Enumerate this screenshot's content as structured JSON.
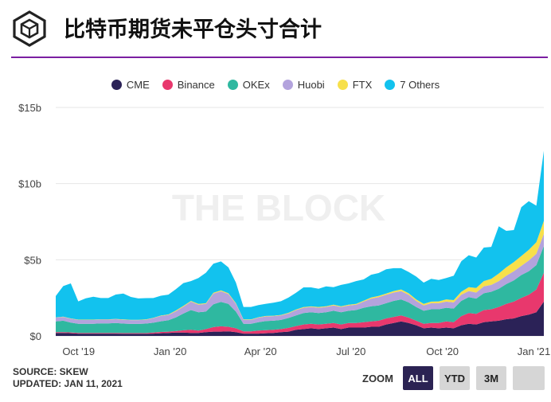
{
  "header": {
    "title": "比特币期货未平仓头寸合计"
  },
  "legend": [
    {
      "name": "CME",
      "color": "#2b2257"
    },
    {
      "name": "Binance",
      "color": "#e8386d"
    },
    {
      "name": "OKEx",
      "color": "#2fb8a0"
    },
    {
      "name": "Huobi",
      "color": "#b3a3dd"
    },
    {
      "name": "FTX",
      "color": "#f7e04b"
    },
    {
      "name": "7 Others",
      "color": "#12c2ee"
    }
  ],
  "watermark": "THE BLOCK",
  "footer": {
    "source": "SOURCE: SKEW",
    "updated": "UPDATED: JAN 11, 2021"
  },
  "zoom": {
    "label": "ZOOM",
    "buttons": [
      "ALL",
      "YTD",
      "3M",
      ""
    ],
    "active": "ALL"
  },
  "chart_data": {
    "type": "area",
    "stacked": true,
    "x_ticks": [
      "Oct '19",
      "Jan '20",
      "Apr '20",
      "Jul '20",
      "Oct '20",
      "Jan '21"
    ],
    "y_ticks": [
      "$0",
      "$5b",
      "$10b",
      "$15b"
    ],
    "ylim": [
      0,
      15
    ],
    "y_unit": "$b",
    "x_start": "2019-09-08",
    "x_end": "2021-01-11",
    "series": [
      {
        "name": "CME",
        "color": "#2b2257",
        "values": [
          0.2,
          0.2,
          0.18,
          0.15,
          0.15,
          0.15,
          0.15,
          0.15,
          0.15,
          0.14,
          0.14,
          0.14,
          0.14,
          0.15,
          0.18,
          0.2,
          0.22,
          0.22,
          0.2,
          0.2,
          0.25,
          0.28,
          0.28,
          0.3,
          0.25,
          0.15,
          0.15,
          0.15,
          0.18,
          0.2,
          0.25,
          0.28,
          0.4,
          0.45,
          0.5,
          0.45,
          0.5,
          0.55,
          0.45,
          0.55,
          0.55,
          0.55,
          0.6,
          0.6,
          0.75,
          0.85,
          0.95,
          0.85,
          0.7,
          0.5,
          0.55,
          0.5,
          0.55,
          0.5,
          0.7,
          0.8,
          0.75,
          0.9,
          0.95,
          1.0,
          1.1,
          1.15,
          1.3,
          1.4,
          1.55,
          2.25
        ]
      },
      {
        "name": "Binance",
        "color": "#e8386d",
        "values": [
          0.05,
          0.05,
          0.05,
          0.05,
          0.05,
          0.05,
          0.05,
          0.05,
          0.05,
          0.05,
          0.05,
          0.05,
          0.05,
          0.07,
          0.08,
          0.08,
          0.1,
          0.15,
          0.2,
          0.15,
          0.2,
          0.3,
          0.35,
          0.3,
          0.25,
          0.15,
          0.15,
          0.2,
          0.2,
          0.2,
          0.2,
          0.25,
          0.25,
          0.3,
          0.3,
          0.3,
          0.3,
          0.3,
          0.3,
          0.3,
          0.3,
          0.35,
          0.35,
          0.4,
          0.4,
          0.4,
          0.4,
          0.35,
          0.3,
          0.3,
          0.3,
          0.35,
          0.4,
          0.4,
          0.6,
          0.7,
          0.7,
          0.8,
          0.8,
          0.9,
          1.0,
          1.1,
          1.2,
          1.3,
          1.5,
          1.9
        ]
      },
      {
        "name": "OKEx",
        "color": "#2fb8a0",
        "values": [
          0.7,
          0.75,
          0.65,
          0.6,
          0.6,
          0.6,
          0.62,
          0.62,
          0.65,
          0.62,
          0.6,
          0.6,
          0.62,
          0.65,
          0.7,
          0.75,
          0.9,
          1.1,
          1.3,
          1.2,
          1.15,
          1.5,
          1.6,
          1.5,
          1.1,
          0.5,
          0.5,
          0.55,
          0.6,
          0.6,
          0.6,
          0.65,
          0.7,
          0.75,
          0.75,
          0.75,
          0.75,
          0.8,
          0.8,
          0.8,
          0.85,
          0.95,
          1.0,
          1.0,
          1.0,
          1.05,
          1.05,
          1.0,
          0.9,
          0.85,
          0.9,
          0.9,
          0.9,
          0.9,
          1.0,
          1.05,
          1.0,
          1.1,
          1.15,
          1.2,
          1.3,
          1.4,
          1.5,
          1.55,
          1.6,
          1.75
        ]
      },
      {
        "name": "Huobi",
        "color": "#b3a3dd",
        "values": [
          0.25,
          0.25,
          0.25,
          0.25,
          0.25,
          0.25,
          0.25,
          0.25,
          0.25,
          0.25,
          0.25,
          0.25,
          0.25,
          0.3,
          0.35,
          0.35,
          0.4,
          0.45,
          0.55,
          0.5,
          0.5,
          0.7,
          0.7,
          0.65,
          0.5,
          0.25,
          0.25,
          0.3,
          0.3,
          0.3,
          0.3,
          0.3,
          0.35,
          0.35,
          0.35,
          0.35,
          0.35,
          0.35,
          0.35,
          0.35,
          0.35,
          0.4,
          0.5,
          0.55,
          0.55,
          0.55,
          0.55,
          0.5,
          0.4,
          0.35,
          0.4,
          0.4,
          0.4,
          0.4,
          0.4,
          0.4,
          0.4,
          0.45,
          0.45,
          0.5,
          0.55,
          0.6,
          0.6,
          0.7,
          0.75,
          0.8
        ]
      },
      {
        "name": "FTX",
        "color": "#f7e04b",
        "values": [
          0.02,
          0.02,
          0.02,
          0.02,
          0.02,
          0.02,
          0.02,
          0.02,
          0.02,
          0.02,
          0.02,
          0.02,
          0.02,
          0.02,
          0.03,
          0.03,
          0.05,
          0.05,
          0.05,
          0.05,
          0.05,
          0.06,
          0.06,
          0.05,
          0.05,
          0.03,
          0.03,
          0.03,
          0.03,
          0.03,
          0.03,
          0.04,
          0.04,
          0.04,
          0.04,
          0.05,
          0.05,
          0.05,
          0.05,
          0.05,
          0.05,
          0.06,
          0.07,
          0.08,
          0.08,
          0.1,
          0.1,
          0.1,
          0.1,
          0.1,
          0.1,
          0.12,
          0.15,
          0.15,
          0.2,
          0.25,
          0.3,
          0.35,
          0.4,
          0.5,
          0.55,
          0.6,
          0.65,
          0.7,
          0.75,
          0.85
        ]
      },
      {
        "name": "7 Others",
        "color": "#12c2ee",
        "values": [
          1.4,
          2.0,
          2.3,
          1.2,
          1.4,
          1.5,
          1.4,
          1.4,
          1.6,
          1.7,
          1.5,
          1.4,
          1.4,
          1.3,
          1.3,
          1.3,
          1.4,
          1.5,
          1.3,
          1.7,
          2.0,
          1.9,
          1.9,
          1.7,
          1.35,
          0.82,
          0.82,
          0.8,
          0.8,
          0.85,
          0.9,
          1.0,
          1.1,
          1.3,
          1.25,
          1.2,
          1.3,
          1.15,
          1.4,
          1.4,
          1.5,
          1.4,
          1.5,
          1.5,
          1.6,
          1.5,
          1.4,
          1.4,
          1.5,
          1.4,
          1.5,
          1.4,
          1.4,
          1.6,
          2.0,
          2.1,
          2.0,
          2.2,
          2.1,
          3.1,
          2.4,
          2.1,
          3.2,
          3.2,
          2.4,
          4.6
        ]
      }
    ]
  }
}
